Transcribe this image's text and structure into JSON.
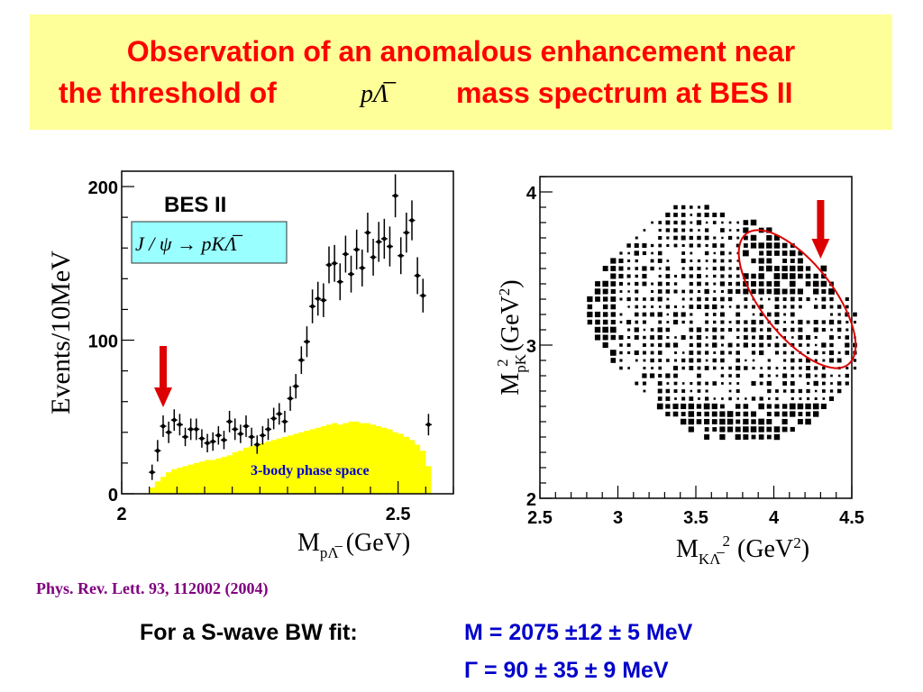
{
  "title": {
    "line1": "Observation of an anomalous enhancement near",
    "line2_prefix": "the threshold of",
    "line2_math": "pΛ̅",
    "line2_suffix": "mass spectrum at BES II"
  },
  "colors": {
    "title": "#ff0000",
    "title_bg": "#ffff99",
    "phase_space_fill": "#ffff00",
    "arrow": "#dd0000",
    "annotation_blue": "#0000cc",
    "citation": "#800080",
    "box_fill": "#99ffff"
  },
  "citation": "Phys. Rev. Lett. 93, 112002 (2004)",
  "fit": {
    "label": "For a S-wave BW fit:",
    "mass": "M = 2075 ±12 ± 5 MeV",
    "width": "Γ  = 90 ± 35 ±  9 MeV"
  },
  "chart_data": [
    {
      "type": "scatter",
      "experiment_label": "BES II",
      "reaction": "J / ψ → pKΛ̅",
      "annotation": "3-body phase space",
      "xlabel_main": "M",
      "xlabel_sub": "pΛ̅",
      "xlabel_unit": "(GeV)",
      "ylabel": "Events/10MeV",
      "xlim": [
        2.0,
        2.6
      ],
      "ylim": [
        0,
        210
      ],
      "x_ticks": [
        {
          "value": 2.0,
          "label": "2"
        },
        {
          "value": 2.5,
          "label": "2.5"
        }
      ],
      "y_ticks": [
        {
          "value": 0,
          "label": "0"
        },
        {
          "value": 100,
          "label": "100"
        },
        {
          "value": 200,
          "label": "200"
        }
      ],
      "data_points": {
        "x": [
          2.055,
          2.065,
          2.075,
          2.085,
          2.095,
          2.105,
          2.115,
          2.125,
          2.135,
          2.145,
          2.155,
          2.165,
          2.175,
          2.185,
          2.195,
          2.205,
          2.215,
          2.225,
          2.235,
          2.245,
          2.255,
          2.265,
          2.275,
          2.285,
          2.295,
          2.305,
          2.315,
          2.325,
          2.335,
          2.345,
          2.355,
          2.365,
          2.375,
          2.385,
          2.395,
          2.405,
          2.415,
          2.425,
          2.435,
          2.445,
          2.455,
          2.465,
          2.475,
          2.485,
          2.495,
          2.505,
          2.515,
          2.525,
          2.535,
          2.545,
          2.555
        ],
        "y": [
          14,
          28,
          44,
          40,
          48,
          45,
          37,
          42,
          42,
          36,
          33,
          34,
          38,
          35,
          47,
          42,
          39,
          44,
          37,
          32,
          38,
          42,
          49,
          52,
          47,
          62,
          70,
          87,
          99,
          122,
          127,
          126,
          149,
          150,
          138,
          156,
          143,
          159,
          147,
          170,
          154,
          164,
          166,
          161,
          194,
          155,
          170,
          178,
          142,
          129,
          45
        ],
        "yerr": [
          5,
          7,
          7,
          7,
          7,
          7,
          6,
          7,
          7,
          6,
          6,
          6,
          6,
          6,
          7,
          7,
          6,
          7,
          6,
          6,
          6,
          7,
          7,
          7,
          7,
          8,
          8,
          9,
          10,
          11,
          11,
          11,
          12,
          12,
          12,
          12,
          12,
          13,
          12,
          13,
          12,
          13,
          13,
          13,
          14,
          12,
          13,
          13,
          12,
          11,
          7
        ]
      },
      "phase_space": {
        "x": [
          2.055,
          2.065,
          2.075,
          2.085,
          2.095,
          2.105,
          2.115,
          2.125,
          2.135,
          2.145,
          2.155,
          2.165,
          2.175,
          2.185,
          2.195,
          2.205,
          2.215,
          2.225,
          2.235,
          2.245,
          2.255,
          2.265,
          2.275,
          2.285,
          2.295,
          2.305,
          2.315,
          2.325,
          2.335,
          2.345,
          2.355,
          2.365,
          2.375,
          2.385,
          2.395,
          2.405,
          2.415,
          2.425,
          2.435,
          2.445,
          2.455,
          2.465,
          2.475,
          2.485,
          2.495,
          2.505,
          2.515,
          2.525,
          2.535,
          2.545,
          2.555
        ],
        "y": [
          4,
          8,
          11,
          14,
          16,
          17,
          18,
          19,
          20,
          21,
          22,
          22,
          23,
          24,
          25,
          27,
          28,
          30,
          31,
          32,
          33,
          34,
          35,
          36,
          37,
          38,
          39,
          40,
          41,
          42,
          43,
          44,
          45,
          46,
          45,
          46,
          47,
          47,
          46,
          46,
          45,
          44,
          43,
          42,
          40,
          39,
          37,
          35,
          32,
          28,
          18
        ]
      },
      "arrow_at": 2.075,
      "legend": "none",
      "grid": false
    },
    {
      "type": "heatmap",
      "description": "Dalitz plot",
      "xlabel_main": "M",
      "xlabel_sub": "KΛ̅",
      "xlabel_exp": "2",
      "xlabel_unit": "(GeV",
      "xlabel_unit_exp": "2",
      "xlabel_unit_close": ")",
      "ylabel_main": "M",
      "ylabel_sub": "pK",
      "ylabel_exp": "2",
      "ylabel_unit": "(GeV",
      "ylabel_unit_exp": "2",
      "ylabel_unit_close": ")",
      "xlim": [
        2.5,
        4.5
      ],
      "ylim": [
        2.0,
        4.1
      ],
      "x_ticks": [
        {
          "value": 2.5,
          "label": "2.5"
        },
        {
          "value": 3.0,
          "label": "3"
        },
        {
          "value": 3.5,
          "label": "3.5"
        },
        {
          "value": 4.0,
          "label": "4"
        },
        {
          "value": 4.5,
          "label": "4.5"
        }
      ],
      "y_ticks": [
        {
          "value": 2,
          "label": "2"
        },
        {
          "value": 3,
          "label": "3"
        },
        {
          "value": 4,
          "label": "4"
        }
      ],
      "highlight_region": {
        "x_center": 4.15,
        "y_center": 3.3
      },
      "arrow_at": {
        "x": 4.3,
        "y": 3.7
      },
      "legend": "none",
      "grid": false
    }
  ]
}
